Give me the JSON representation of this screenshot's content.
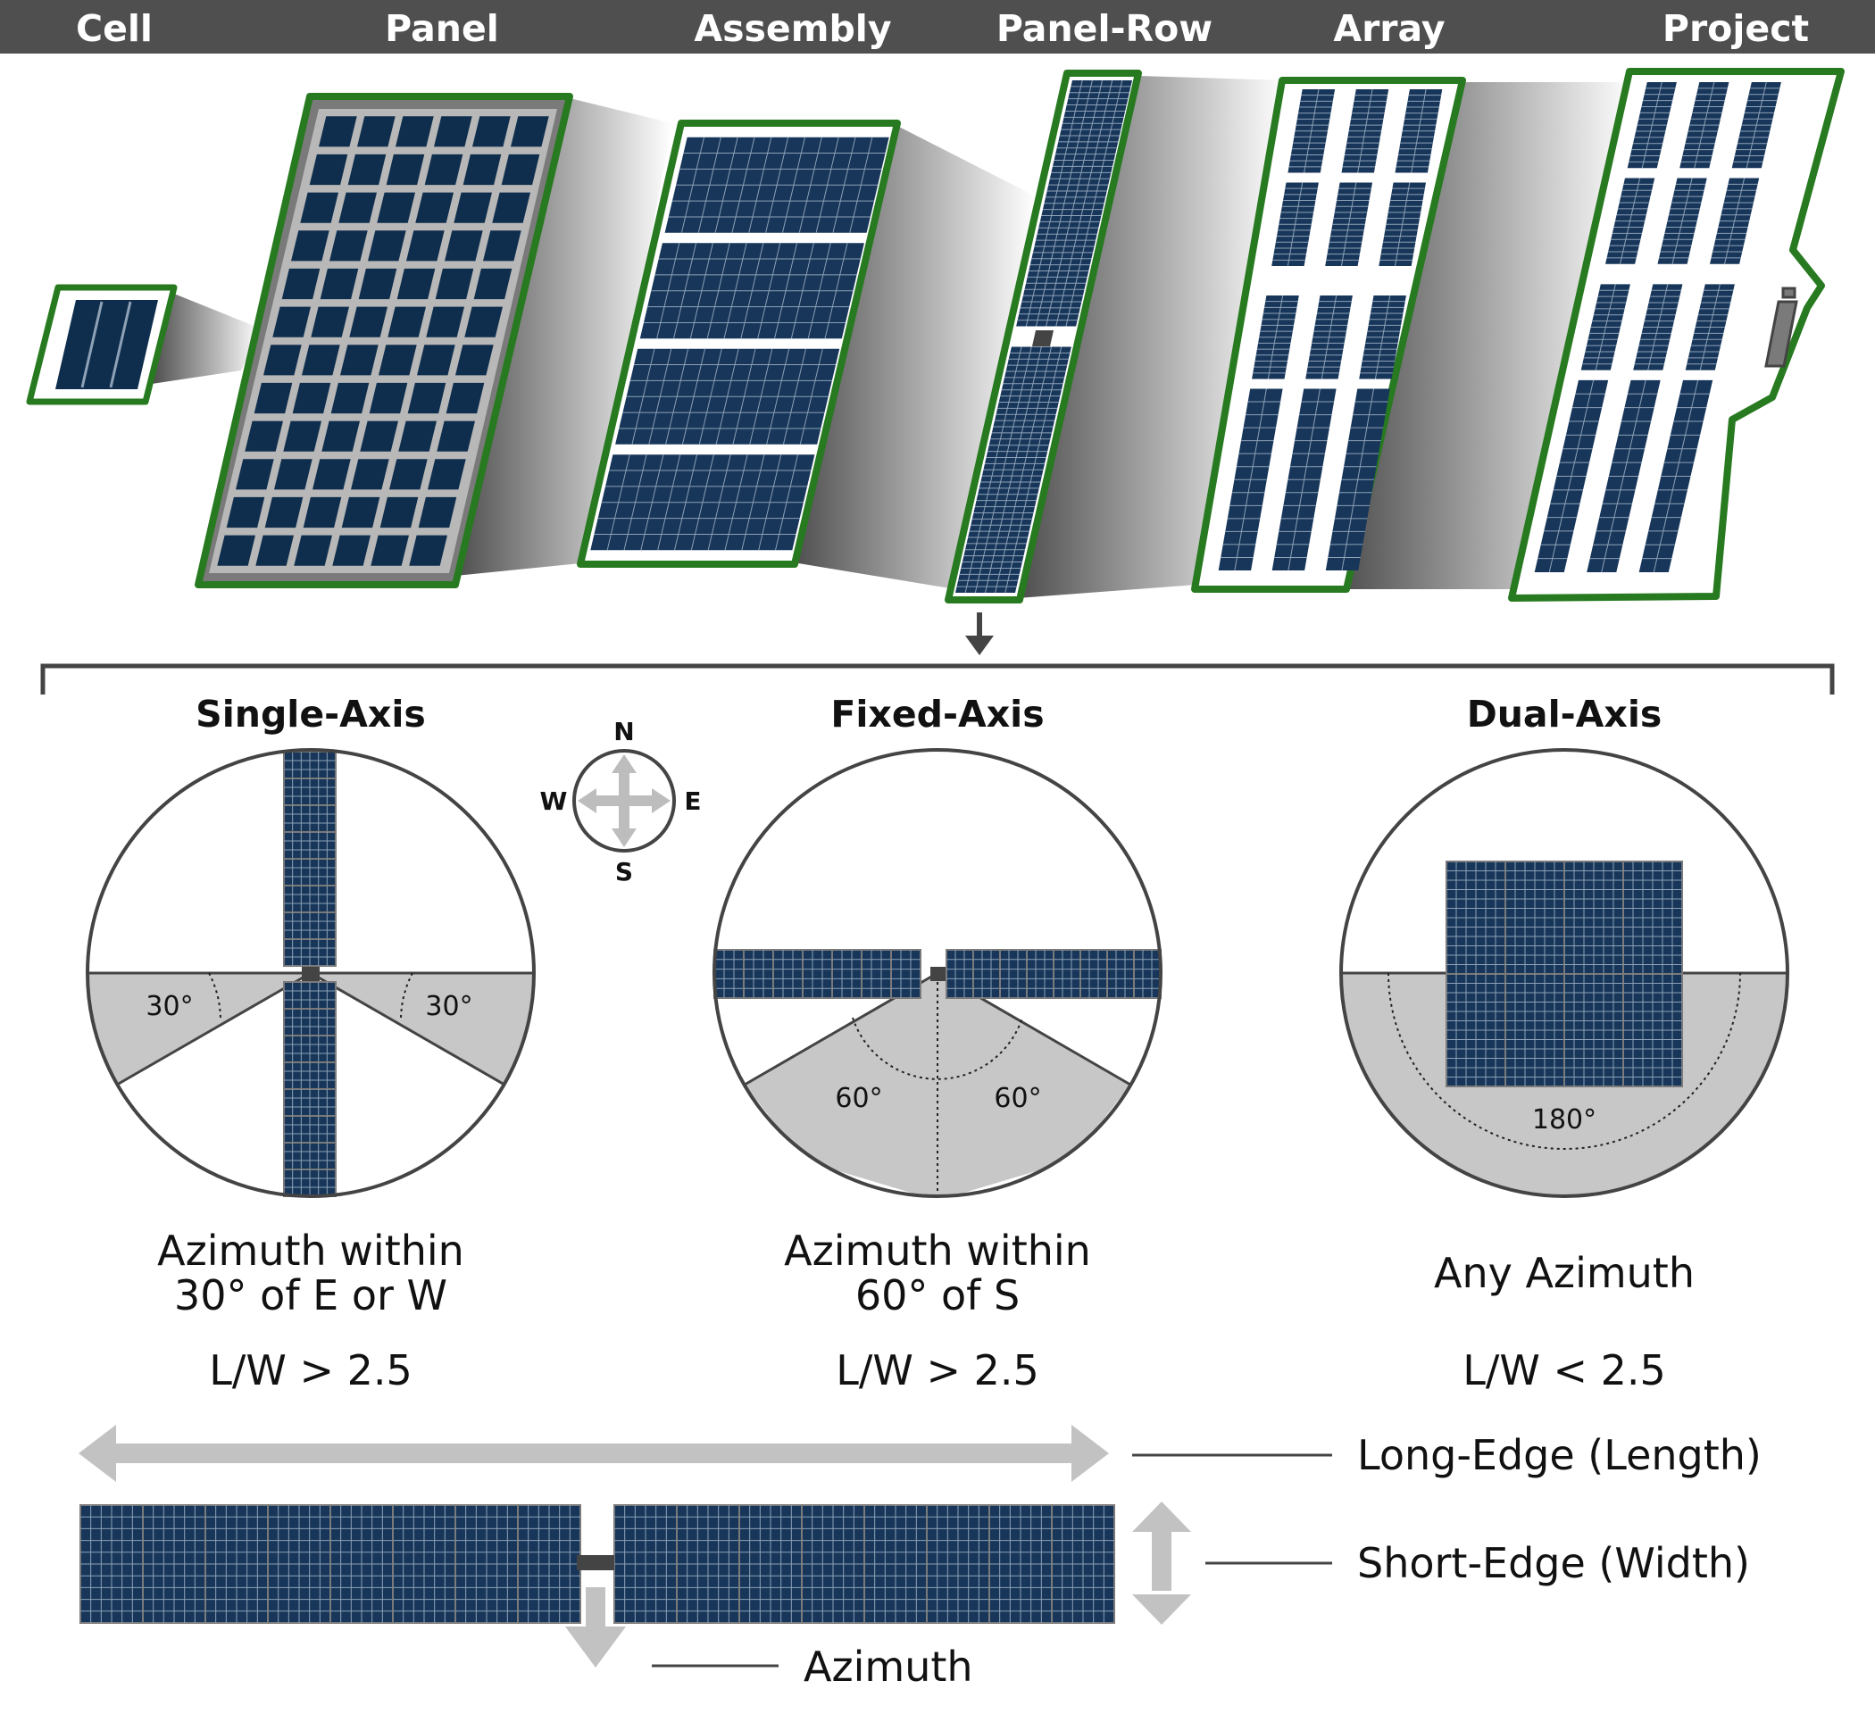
{
  "colors": {
    "header_bg": "#4f4f4f",
    "frame_green": "#277a1f",
    "panel_navy": "#17365a",
    "cell_navy": "#0f2e4d",
    "grid_line": "#8ea1b6",
    "sector_gray": "#c7c7c7",
    "arrow_gray": "#c2c2c2",
    "outline_dark": "#444444"
  },
  "hierarchy": {
    "labels": [
      "Cell",
      "Panel",
      "Assembly",
      "Panel-Row",
      "Array",
      "Project"
    ]
  },
  "tracking": {
    "single": {
      "title": "Single-Axis",
      "angle_left": "30°",
      "angle_right": "30°",
      "caption_line1": "Azimuth within",
      "caption_line2": "30° of E or W",
      "ratio": "L/W > 2.5"
    },
    "fixed": {
      "title": "Fixed-Axis",
      "angle_left": "60°",
      "angle_right": "60°",
      "caption_line1": "Azimuth within",
      "caption_line2": "60° of S",
      "ratio": "L/W > 2.5"
    },
    "dual": {
      "title": "Dual-Axis",
      "angle": "180°",
      "caption": "Any Azimuth",
      "ratio": "L/W < 2.5"
    }
  },
  "compass": {
    "n": "N",
    "s": "S",
    "e": "E",
    "w": "W",
    "icon": "compass-icon"
  },
  "legend": {
    "long_edge": "Long-Edge (Length)",
    "short_edge": "Short-Edge (Width)",
    "azimuth": "Azimuth"
  }
}
